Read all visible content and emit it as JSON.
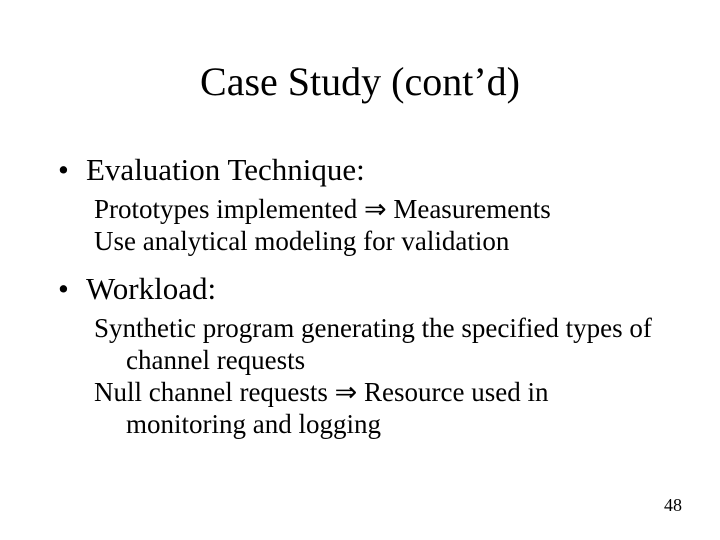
{
  "title": "Case Study (cont’d)",
  "bullets": [
    {
      "label": "Evaluation Technique:",
      "items": [
        "Prototypes implemented ⇒ Measurements",
        "Use analytical modeling for validation"
      ]
    },
    {
      "label": "Workload:",
      "items": [
        "Synthetic program generating the specified types of channel requests",
        "Null channel requests ⇒ Resource used in monitoring and logging"
      ]
    }
  ],
  "page_number": "48",
  "colors": {
    "background": "#ffffff",
    "text": "#000000"
  },
  "typography": {
    "family": "Times New Roman",
    "title_size_pt": 40,
    "level1_size_pt": 31,
    "level2_size_pt": 27,
    "page_num_size_pt": 18
  }
}
